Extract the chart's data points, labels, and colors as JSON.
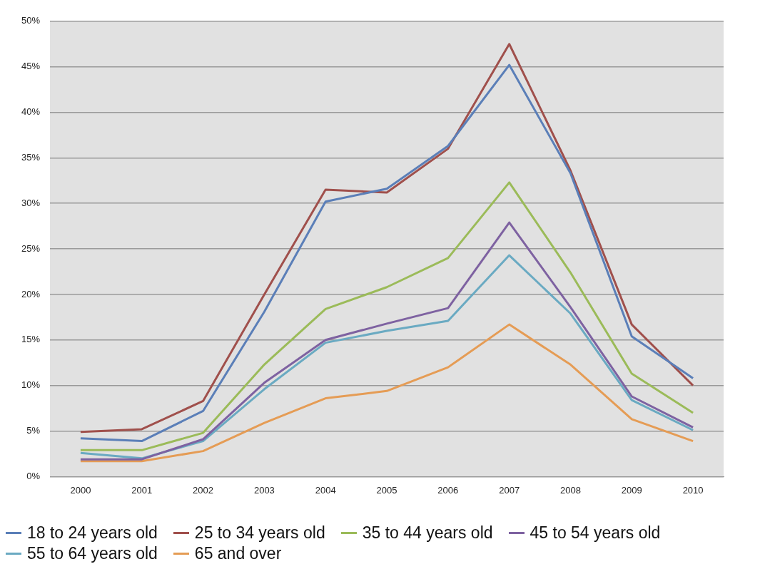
{
  "chart_data": {
    "type": "line",
    "categories": [
      "2000",
      "2001",
      "2002",
      "2003",
      "2004",
      "2005",
      "2006",
      "2007",
      "2008",
      "2009",
      "2010"
    ],
    "series": [
      {
        "name": "18 to 24 years old",
        "color": "#5b7fb8",
        "values": [
          4.2,
          3.9,
          7.2,
          18.1,
          30.2,
          31.6,
          36.3,
          45.2,
          33.3,
          15.4,
          10.8
        ]
      },
      {
        "name": "25 to 34 years old",
        "color": "#a0504c",
        "values": [
          4.9,
          5.2,
          8.3,
          20.0,
          31.5,
          31.2,
          36.0,
          47.5,
          33.6,
          16.7,
          10.0
        ]
      },
      {
        "name": "35 to 44 years old",
        "color": "#9bbb59",
        "values": [
          2.9,
          2.9,
          4.8,
          12.3,
          18.4,
          20.8,
          24.0,
          32.3,
          22.4,
          11.3,
          7.0
        ]
      },
      {
        "name": "45 to 54 years old",
        "color": "#7e62a1",
        "values": [
          1.9,
          1.9,
          4.1,
          10.3,
          15.0,
          16.8,
          18.5,
          27.9,
          18.6,
          8.8,
          5.4
        ]
      },
      {
        "name": "55 to 64 years old",
        "color": "#6aaac2",
        "values": [
          2.6,
          2.0,
          3.9,
          9.6,
          14.7,
          16.0,
          17.1,
          24.3,
          17.9,
          8.4,
          5.1
        ]
      },
      {
        "name": "65 and over",
        "color": "#e59c55",
        "values": [
          1.7,
          1.7,
          2.8,
          5.9,
          8.6,
          9.4,
          12.0,
          16.7,
          12.3,
          6.3,
          3.9
        ]
      }
    ],
    "ylim": [
      0,
      50
    ],
    "yticks": [
      {
        "value": 0,
        "label": "0%"
      },
      {
        "value": 5,
        "label": "5%"
      },
      {
        "value": 10,
        "label": "10%"
      },
      {
        "value": 15,
        "label": "15%"
      },
      {
        "value": 20,
        "label": "20%"
      },
      {
        "value": 25,
        "label": "25%"
      },
      {
        "value": 30,
        "label": "30%"
      },
      {
        "value": 35,
        "label": "35%"
      },
      {
        "value": 40,
        "label": "40%"
      },
      {
        "value": 45,
        "label": "45%"
      },
      {
        "value": 50,
        "label": "50%"
      }
    ],
    "grid": "y",
    "legend": "bottom",
    "marker": "none",
    "line_style": "solid"
  }
}
